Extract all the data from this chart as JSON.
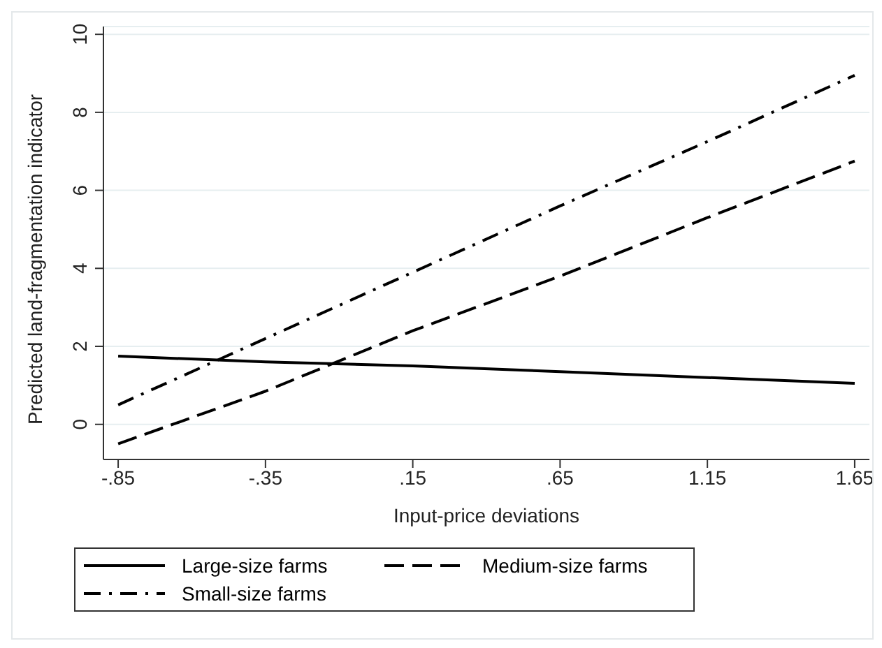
{
  "chart_data": {
    "type": "line",
    "xlabel": "Input-price deviations",
    "ylabel": "Predicted land-fragmentation indicator",
    "x": [
      -0.85,
      -0.35,
      0.15,
      0.65,
      1.15,
      1.65
    ],
    "series": [
      {
        "name": "Large-size farms",
        "color": "#000000",
        "line_style": "solid",
        "values": [
          1.75,
          1.6,
          1.5,
          1.35,
          1.2,
          1.05
        ]
      },
      {
        "name": "Medium-size farms",
        "color": "#000000",
        "line_style": "dashed",
        "values": [
          -0.5,
          0.85,
          2.4,
          3.8,
          5.3,
          6.75
        ]
      },
      {
        "name": "Small-size farms",
        "color": "#000000",
        "line_style": "dashdot",
        "values": [
          0.5,
          2.2,
          3.9,
          5.6,
          7.25,
          8.95
        ]
      }
    ],
    "xlim": [
      -0.9,
      1.7
    ],
    "xticks": [
      {
        "value": -0.85,
        "label": "-.85"
      },
      {
        "value": -0.35,
        "label": "-.35"
      },
      {
        "value": 0.15,
        "label": ".15"
      },
      {
        "value": 0.65,
        "label": ".65"
      },
      {
        "value": 1.15,
        "label": "1.15"
      },
      {
        "value": 1.65,
        "label": "1.65"
      }
    ],
    "ylim": [
      -0.9,
      10.2
    ],
    "yticks": [
      0,
      2,
      4,
      6,
      8,
      10
    ],
    "grid": "y",
    "legend": "bottom",
    "marker": "none"
  }
}
